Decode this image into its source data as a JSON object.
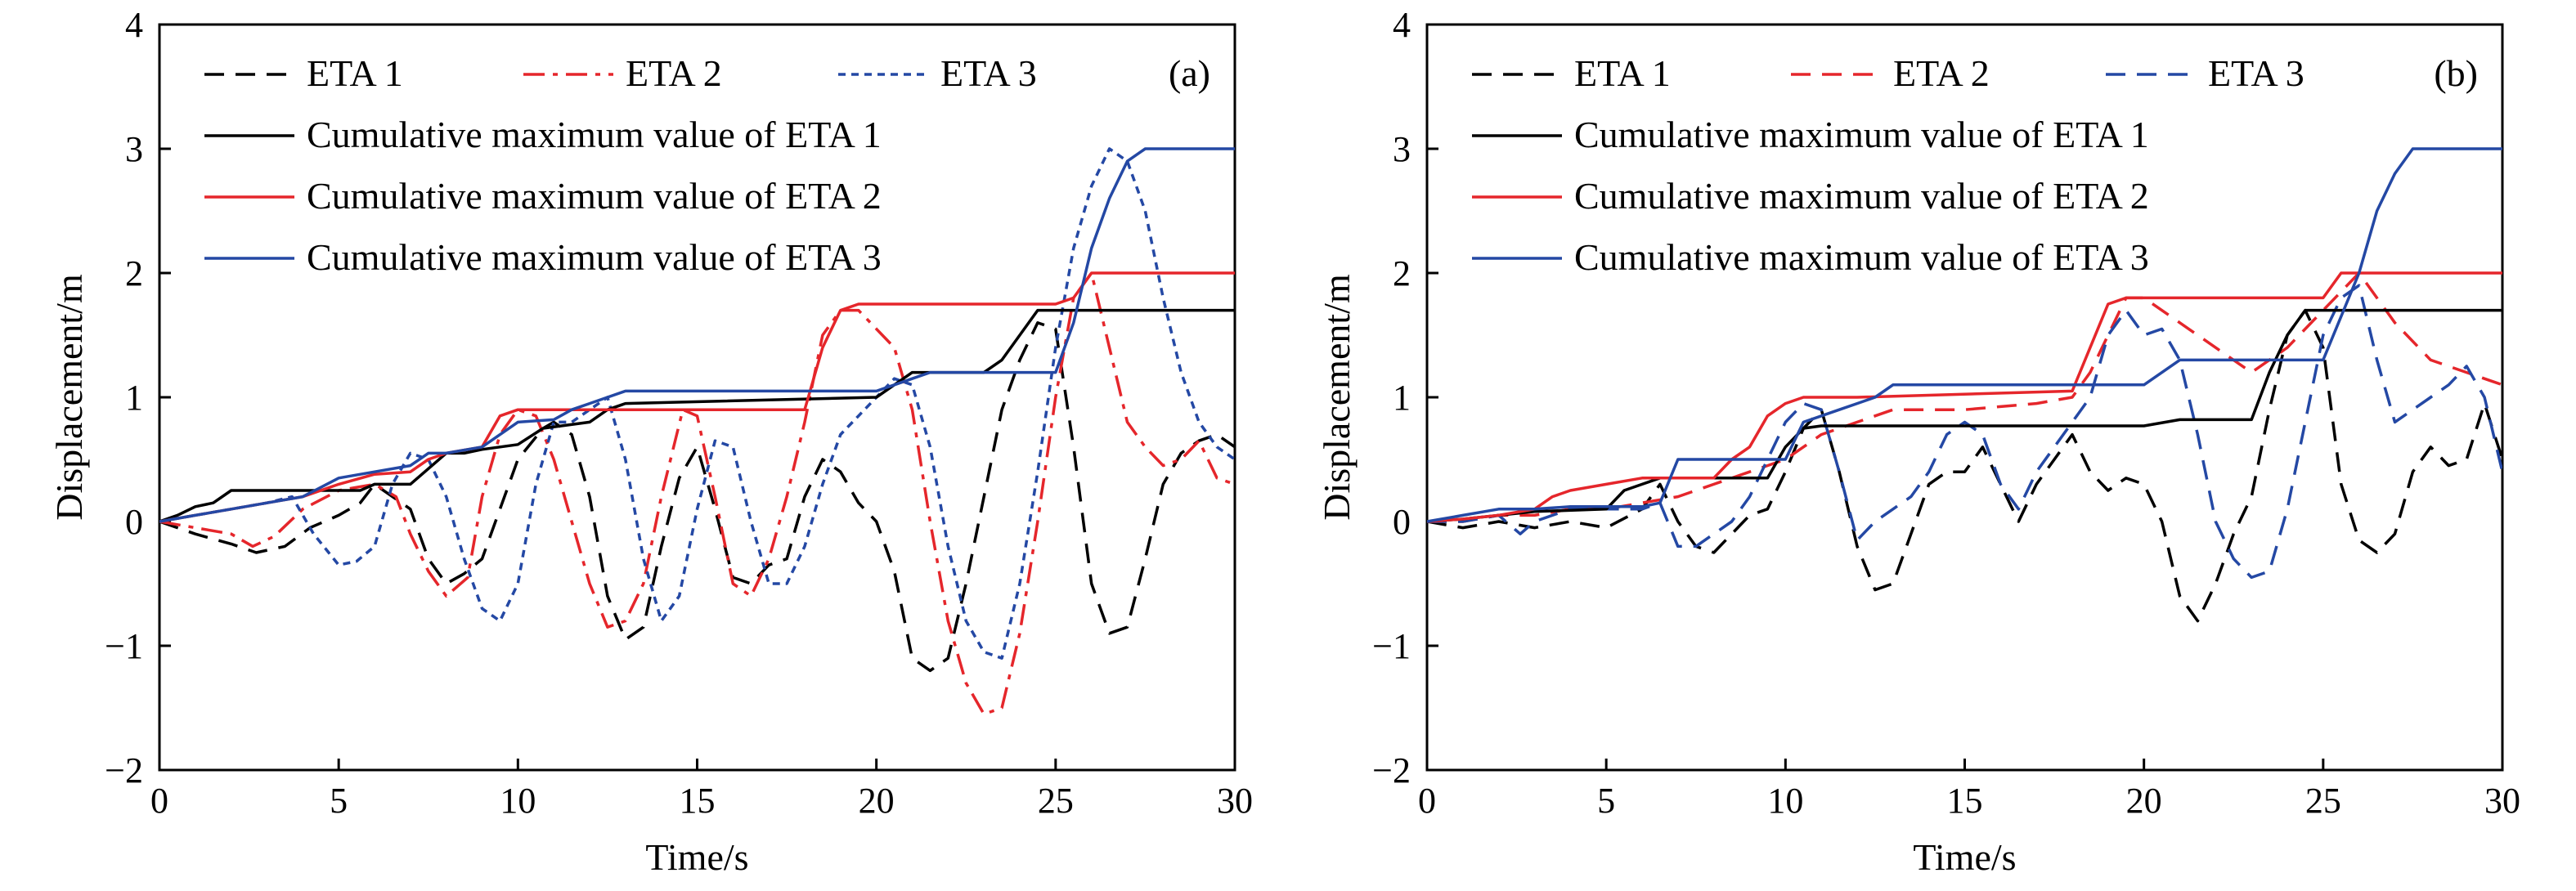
{
  "chart_data": [
    {
      "type": "line",
      "panel_tag": "(a)",
      "xlabel": "Time/s",
      "ylabel": "Displacement/m",
      "xlim": [
        0,
        30
      ],
      "ylim": [
        -2,
        4
      ],
      "xticks": [
        0,
        5,
        10,
        15,
        20,
        25,
        30
      ],
      "yticks": [
        -2,
        -1,
        0,
        1,
        2,
        3,
        4
      ],
      "ytick_labels": [
        "−2",
        "−1",
        "0",
        "1",
        "2",
        "3",
        "4"
      ],
      "legend_position": "top-left",
      "grid": false,
      "series": [
        {
          "name": "ETA 1",
          "color": "#000000",
          "dash": "dashed",
          "x": [
            0,
            1,
            2,
            2.7,
            3.5,
            4.2,
            5,
            5.6,
            6,
            6.5,
            7,
            7.5,
            8,
            8.5,
            9,
            9.5,
            10,
            10.7,
            11,
            11.5,
            12,
            12.5,
            13,
            13.5,
            14,
            14.5,
            15,
            15.5,
            16,
            16.5,
            17,
            17.5,
            18,
            18.5,
            19,
            19.5,
            20,
            20.5,
            21,
            21.5,
            22,
            22.5,
            23,
            23.5,
            24,
            24.5,
            25,
            25.5,
            26,
            26.5,
            27,
            27.5,
            28,
            28.5,
            29,
            29.5,
            30
          ],
          "y": [
            0,
            -0.1,
            -0.18,
            -0.25,
            -0.2,
            -0.05,
            0.05,
            0.15,
            0.3,
            0.2,
            0.1,
            -0.3,
            -0.5,
            -0.42,
            -0.3,
            0.1,
            0.5,
            0.75,
            0.8,
            0.7,
            0.2,
            -0.6,
            -0.95,
            -0.85,
            -0.2,
            0.35,
            0.6,
            0.1,
            -0.45,
            -0.5,
            -0.35,
            -0.3,
            0.2,
            0.5,
            0.4,
            0.15,
            0.0,
            -0.4,
            -1.1,
            -1.2,
            -1.1,
            -0.5,
            0.2,
            0.9,
            1.3,
            1.6,
            1.55,
            0.6,
            -0.5,
            -0.9,
            -0.85,
            -0.3,
            0.3,
            0.55,
            0.65,
            0.7,
            0.6
          ]
        },
        {
          "name": "ETA 2",
          "color": "#e5262b",
          "dash": "dashdot",
          "x": [
            0,
            1,
            2,
            2.6,
            3.2,
            4,
            5,
            6,
            6.6,
            7,
            7.5,
            8,
            8.6,
            9,
            9.5,
            10,
            10.5,
            11,
            11.5,
            12,
            12.5,
            13,
            13.5,
            14,
            14.6,
            15,
            15.5,
            16,
            16.5,
            17,
            17.5,
            18,
            18.5,
            19,
            19.5,
            20,
            20.5,
            21,
            21.5,
            22,
            22.5,
            23,
            23.5,
            24,
            24.5,
            25,
            25.5,
            26,
            26.5,
            27,
            27.5,
            28,
            28.5,
            29,
            29.5,
            30
          ],
          "y": [
            0,
            -0.05,
            -0.1,
            -0.2,
            -0.12,
            0.1,
            0.25,
            0.3,
            0.2,
            -0.1,
            -0.4,
            -0.6,
            -0.45,
            0.2,
            0.7,
            0.9,
            0.85,
            0.5,
            0.0,
            -0.5,
            -0.85,
            -0.8,
            -0.5,
            0.2,
            0.9,
            0.85,
            0.2,
            -0.5,
            -0.6,
            -0.3,
            0.2,
            0.8,
            1.5,
            1.7,
            1.7,
            1.55,
            1.4,
            0.9,
            0.0,
            -0.8,
            -1.3,
            -1.55,
            -1.5,
            -0.9,
            0.0,
            1.0,
            1.8,
            2.0,
            1.4,
            0.8,
            0.6,
            0.45,
            0.5,
            0.65,
            0.35,
            0.3
          ]
        },
        {
          "name": "ETA 3",
          "color": "#2448a4",
          "dash": "dotted",
          "x": [
            0,
            1,
            2,
            3,
            3.7,
            4.3,
            5,
            5.5,
            6,
            6.5,
            7,
            7.5,
            8,
            8.5,
            9,
            9.5,
            10,
            10.5,
            11,
            11.5,
            12,
            12.5,
            13,
            13.5,
            14,
            14.5,
            15,
            15.5,
            16,
            16.5,
            17,
            17.5,
            18,
            18.5,
            19,
            19.5,
            20,
            20.5,
            21,
            21.5,
            22,
            22.5,
            23,
            23.5,
            24,
            24.5,
            25,
            25.5,
            26,
            26.5,
            27,
            27.5,
            28,
            28.5,
            29,
            29.5,
            30
          ],
          "y": [
            0,
            0.05,
            0.1,
            0.15,
            0.2,
            -0.1,
            -0.35,
            -0.32,
            -0.2,
            0.3,
            0.55,
            0.5,
            0.2,
            -0.3,
            -0.7,
            -0.8,
            -0.5,
            0.3,
            0.8,
            0.8,
            0.9,
            1.0,
            0.5,
            -0.3,
            -0.8,
            -0.6,
            0.1,
            0.65,
            0.6,
            0.0,
            -0.5,
            -0.5,
            -0.2,
            0.3,
            0.7,
            0.85,
            1.0,
            1.15,
            1.1,
            0.6,
            -0.2,
            -0.8,
            -1.05,
            -1.1,
            -0.5,
            0.4,
            1.4,
            2.2,
            2.7,
            3.0,
            2.9,
            2.5,
            1.8,
            1.2,
            0.8,
            0.6,
            0.5
          ]
        },
        {
          "name": "Cumulative maximum value of ETA 1",
          "color": "#000000",
          "dash": "solid",
          "x": [
            0,
            0.5,
            1,
            1.5,
            2,
            4,
            5.6,
            6,
            7,
            8,
            8.5,
            9,
            9.5,
            10,
            10.7,
            12,
            12.5,
            13,
            20,
            20.5,
            21,
            22,
            23,
            23.5,
            24,
            24.5,
            25,
            30
          ],
          "y": [
            0,
            0.05,
            0.12,
            0.15,
            0.25,
            0.25,
            0.25,
            0.3,
            0.3,
            0.55,
            0.55,
            0.58,
            0.6,
            0.62,
            0.75,
            0.8,
            0.9,
            0.95,
            1.0,
            1.1,
            1.2,
            1.2,
            1.2,
            1.3,
            1.5,
            1.7,
            1.7,
            1.7
          ]
        },
        {
          "name": "Cumulative maximum value of ETA 2",
          "color": "#e5262b",
          "dash": "solid",
          "x": [
            0,
            1,
            2,
            3,
            4,
            5,
            6,
            7,
            7.5,
            8,
            9,
            9.5,
            10,
            10.5,
            15,
            18,
            18.5,
            19,
            19.5,
            20,
            25,
            25.5,
            26,
            30
          ],
          "y": [
            0,
            0.05,
            0.1,
            0.15,
            0.2,
            0.3,
            0.38,
            0.4,
            0.5,
            0.55,
            0.6,
            0.85,
            0.9,
            0.9,
            0.9,
            0.9,
            1.4,
            1.7,
            1.75,
            1.75,
            1.75,
            1.8,
            2.0,
            2.0
          ]
        },
        {
          "name": "Cumulative maximum value of ETA 3",
          "color": "#2448a4",
          "dash": "solid",
          "x": [
            0,
            1,
            2,
            3,
            4,
            5,
            6,
            7,
            7.5,
            8,
            9,
            10,
            11,
            11.5,
            12,
            12.5,
            13,
            20,
            20.5,
            21,
            21.5,
            25,
            25.5,
            26,
            26.5,
            27,
            27.5,
            30
          ],
          "y": [
            0,
            0.05,
            0.1,
            0.15,
            0.2,
            0.35,
            0.4,
            0.45,
            0.55,
            0.55,
            0.6,
            0.8,
            0.82,
            0.9,
            0.95,
            1.0,
            1.05,
            1.05,
            1.1,
            1.15,
            1.2,
            1.2,
            1.6,
            2.2,
            2.6,
            2.9,
            3.0,
            3.0
          ]
        }
      ]
    },
    {
      "type": "line",
      "panel_tag": "(b)",
      "xlabel": "Time/s",
      "ylabel": "Displacement/m",
      "xlim": [
        0,
        30
      ],
      "ylim": [
        -2,
        4
      ],
      "xticks": [
        0,
        5,
        10,
        15,
        20,
        25,
        30
      ],
      "yticks": [
        -2,
        -1,
        0,
        1,
        2,
        3,
        4
      ],
      "ytick_labels": [
        "−2",
        "−1",
        "0",
        "1",
        "2",
        "3",
        "4"
      ],
      "legend_position": "top-left",
      "grid": false,
      "series": [
        {
          "name": "ETA 1",
          "color": "#000000",
          "dash": "dashed",
          "x": [
            0,
            1,
            2,
            3,
            4,
            5,
            6,
            6.5,
            7,
            7.5,
            8,
            8.5,
            9,
            9.5,
            10,
            10.5,
            11,
            11.5,
            12,
            12.5,
            13,
            13.5,
            14,
            14.5,
            15,
            15.5,
            16,
            16.5,
            17,
            17.5,
            18,
            18.5,
            19,
            19.5,
            20,
            20.5,
            21,
            21.5,
            22,
            22.5,
            23,
            23.5,
            24,
            24.5,
            25,
            25.5,
            26,
            26.5,
            27,
            27.5,
            28,
            28.5,
            29,
            29.5,
            30
          ],
          "y": [
            0,
            -0.05,
            0.0,
            -0.05,
            0.0,
            -0.05,
            0.1,
            0.3,
            0.0,
            -0.2,
            -0.25,
            -0.1,
            0.05,
            0.1,
            0.4,
            0.75,
            0.9,
            0.4,
            -0.2,
            -0.55,
            -0.5,
            -0.1,
            0.3,
            0.4,
            0.4,
            0.6,
            0.3,
            0.0,
            0.3,
            0.5,
            0.7,
            0.4,
            0.25,
            0.35,
            0.3,
            0.0,
            -0.6,
            -0.8,
            -0.5,
            -0.1,
            0.2,
            0.9,
            1.5,
            1.7,
            1.4,
            0.3,
            -0.15,
            -0.25,
            -0.1,
            0.4,
            0.6,
            0.45,
            0.5,
            0.95,
            0.5
          ]
        },
        {
          "name": "ETA 2",
          "color": "#e5262b",
          "dash": "dashed",
          "x": [
            0,
            1,
            2,
            3,
            4,
            5,
            6,
            7,
            8,
            9,
            10,
            10.5,
            11,
            12,
            13,
            15,
            17,
            18,
            18.5,
            19,
            19.5,
            20,
            21,
            22,
            23,
            24,
            25,
            26,
            27,
            28,
            29,
            30
          ],
          "y": [
            0,
            0.0,
            0.05,
            0.05,
            0.1,
            0.1,
            0.15,
            0.2,
            0.3,
            0.4,
            0.5,
            0.6,
            0.7,
            0.8,
            0.9,
            0.9,
            0.95,
            1.0,
            1.2,
            1.5,
            1.8,
            1.8,
            1.6,
            1.4,
            1.2,
            1.4,
            1.7,
            2.0,
            1.6,
            1.3,
            1.2,
            1.1
          ]
        },
        {
          "name": "ETA 3",
          "color": "#2448a4",
          "dash": "dashed",
          "x": [
            0,
            1,
            2,
            2.6,
            3,
            4,
            5,
            6,
            6.5,
            7,
            7.5,
            8,
            8.5,
            9,
            9.5,
            10,
            10.5,
            11,
            11.5,
            12,
            12.5,
            13,
            13.5,
            14,
            14.5,
            15,
            15.5,
            16,
            16.5,
            17,
            17.5,
            18,
            18.5,
            19,
            19.5,
            20,
            20.5,
            21,
            21.5,
            22,
            22.5,
            23,
            23.5,
            24,
            24.5,
            25,
            25.5,
            26,
            26.5,
            27,
            27.5,
            28,
            28.5,
            29,
            29.5,
            30
          ],
          "y": [
            0,
            0.0,
            0.05,
            -0.1,
            0.0,
            0.1,
            0.1,
            0.1,
            0.15,
            -0.2,
            -0.2,
            -0.1,
            0.0,
            0.2,
            0.5,
            0.8,
            0.95,
            0.9,
            0.4,
            -0.15,
            0.0,
            0.1,
            0.2,
            0.4,
            0.7,
            0.8,
            0.7,
            0.3,
            0.1,
            0.4,
            0.6,
            0.8,
            1.0,
            1.5,
            1.7,
            1.5,
            1.55,
            1.3,
            0.7,
            0.0,
            -0.3,
            -0.45,
            -0.4,
            0.1,
            0.8,
            1.5,
            1.8,
            1.9,
            1.3,
            0.8,
            0.9,
            1.0,
            1.1,
            1.25,
            1.0,
            0.4
          ]
        },
        {
          "name": "Cumulative maximum value of ETA 1",
          "color": "#000000",
          "dash": "solid",
          "x": [
            0,
            1,
            2,
            3,
            5,
            5.5,
            6,
            6.5,
            7,
            9.5,
            10,
            10.5,
            11,
            12,
            18,
            19,
            20,
            21,
            22,
            23,
            23.5,
            24,
            24.5,
            25,
            30
          ],
          "y": [
            0,
            0.02,
            0.05,
            0.08,
            0.1,
            0.25,
            0.3,
            0.35,
            0.35,
            0.35,
            0.6,
            0.75,
            0.77,
            0.77,
            0.77,
            0.77,
            0.77,
            0.82,
            0.82,
            0.82,
            1.2,
            1.5,
            1.7,
            1.7,
            1.7
          ]
        },
        {
          "name": "Cumulative maximum value of ETA 2",
          "color": "#e5262b",
          "dash": "solid",
          "x": [
            0,
            1,
            2,
            3,
            3.5,
            4,
            5,
            6,
            7,
            8,
            8.5,
            9,
            9.5,
            10,
            10.5,
            11,
            12,
            18,
            18.5,
            19,
            19.5,
            20,
            25,
            25.5,
            26,
            30
          ],
          "y": [
            0,
            0.02,
            0.05,
            0.1,
            0.2,
            0.25,
            0.3,
            0.35,
            0.35,
            0.35,
            0.5,
            0.6,
            0.85,
            0.95,
            1.0,
            1.0,
            1.0,
            1.05,
            1.4,
            1.75,
            1.8,
            1.8,
            1.8,
            2.0,
            2.0,
            2.0
          ]
        },
        {
          "name": "Cumulative maximum value of ETA 3",
          "color": "#2448a4",
          "dash": "solid",
          "x": [
            0,
            1,
            2,
            3,
            4,
            5,
            6,
            6.5,
            7,
            8,
            9,
            10,
            10.5,
            11,
            11.5,
            12,
            12.5,
            13,
            18,
            18.5,
            19,
            20,
            21,
            25,
            26,
            26.5,
            27,
            27.5,
            30
          ],
          "y": [
            0,
            0.05,
            0.1,
            0.1,
            0.12,
            0.12,
            0.12,
            0.15,
            0.5,
            0.5,
            0.5,
            0.5,
            0.8,
            0.85,
            0.9,
            0.95,
            1.0,
            1.1,
            1.1,
            1.1,
            1.1,
            1.1,
            1.3,
            1.3,
            2.0,
            2.5,
            2.8,
            3.0,
            3.0
          ]
        }
      ]
    }
  ]
}
